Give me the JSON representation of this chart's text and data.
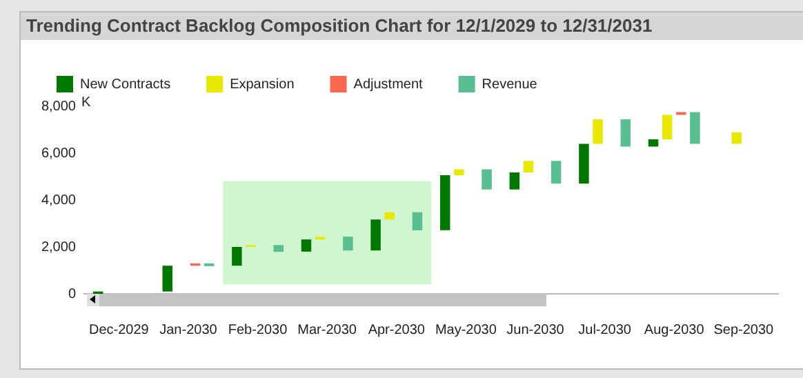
{
  "chart_data": {
    "type": "bar",
    "title": "Trending Contract Backlog Composition Chart for 12/1/2029 to 12/31/2031",
    "ylabel": "K",
    "categories": [
      "Dec-2029",
      "Jan-2030",
      "Feb-2030",
      "Mar-2030",
      "Apr-2030",
      "May-2030",
      "Jun-2030",
      "Jul-2030",
      "Aug-2030",
      "Sep-2030"
    ],
    "series": [
      {
        "name": "New Contracts",
        "color": "#007800",
        "values": [
          100,
          1100,
          800,
          520,
          1320,
          2350,
          730,
          1700,
          310,
          null
        ],
        "base": [
          0,
          100,
          1200,
          1800,
          1850,
          2710,
          4450,
          4700,
          6280,
          null
        ]
      },
      {
        "name": "Expansion",
        "color": "#e8e800",
        "values": [
          null,
          null,
          80,
          120,
          310,
          250,
          490,
          1040,
          1040,
          490
        ],
        "base": [
          null,
          null,
          2000,
          2320,
          3170,
          5060,
          5180,
          6400,
          6590,
          6400
        ]
      },
      {
        "name": "Adjustment",
        "color": "#f86850",
        "values": [
          null,
          100,
          null,
          null,
          null,
          null,
          null,
          null,
          120,
          null
        ],
        "base": [
          null,
          1200,
          null,
          null,
          null,
          null,
          null,
          null,
          7630,
          null
        ]
      },
      {
        "name": "Revenue",
        "color": "#58c090",
        "values": [
          null,
          -120,
          -290,
          -590,
          -770,
          -860,
          -970,
          -1160,
          -1350,
          null
        ],
        "base": [
          null,
          1300,
          2080,
          2440,
          3480,
          5310,
          5670,
          7440,
          7750,
          null
        ]
      }
    ],
    "ylim": [
      0,
      8000
    ],
    "yticks": [
      0,
      {
        "value": 2000,
        "label": "2,000"
      },
      {
        "value": 4000,
        "label": "4,000"
      },
      {
        "value": 6000,
        "label": "6,000"
      },
      {
        "value": 8000,
        "label": "8,000"
      }
    ],
    "grid": false,
    "legend": "top left",
    "bands": [
      {
        "axis": "x",
        "from": "Feb-2030",
        "to": "Apr-2030",
        "color": "#c8f4c8"
      }
    ]
  }
}
